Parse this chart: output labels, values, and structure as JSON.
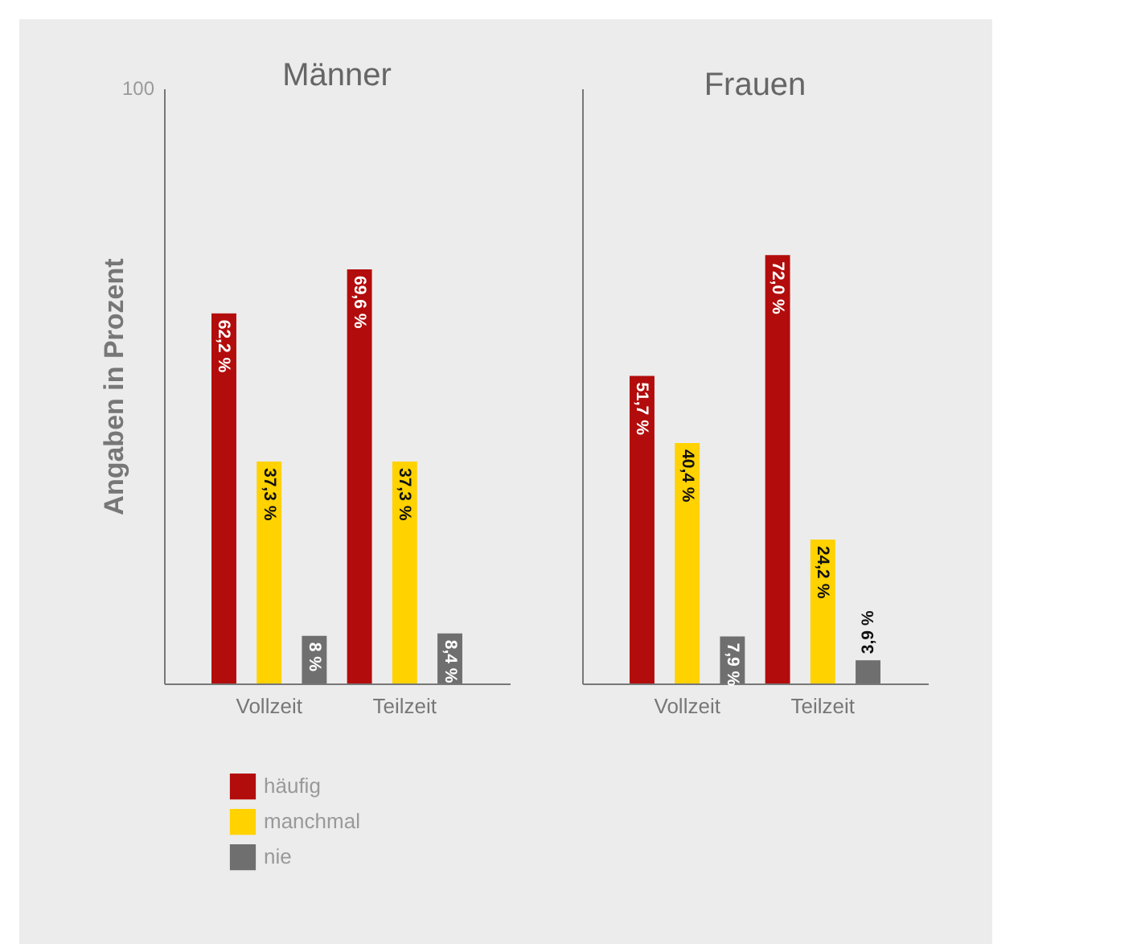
{
  "chart_data": [
    {
      "type": "bar",
      "title": "Männer",
      "ylabel": "Angaben in Prozent",
      "categories": [
        "Vollzeit",
        "Teilzeit"
      ],
      "ylim": [
        0,
        100
      ],
      "annotations": [
        "100"
      ],
      "legend": "bottom",
      "data_labels": true,
      "series": [
        {
          "name": "häufig",
          "color": "#b30c0c",
          "values": [
            62.2,
            69.6
          ],
          "value_labels": [
            "62,2 %",
            "69,6 %"
          ]
        },
        {
          "name": "manchmal",
          "color": "#ffd200",
          "values": [
            37.3,
            37.3
          ],
          "value_labels": [
            "37,3 %",
            "37,3 %"
          ]
        },
        {
          "name": "nie",
          "color": "#6f6f6f",
          "values": [
            8,
            8.4
          ],
          "value_labels": [
            "8 %",
            "8,4 %"
          ]
        }
      ]
    },
    {
      "type": "bar",
      "title": "Frauen",
      "categories": [
        "Vollzeit",
        "Teilzeit"
      ],
      "ylim": [
        0,
        100
      ],
      "tick_labels": "x",
      "data_labels": true,
      "series": [
        {
          "name": "häufig",
          "color": "#b30c0c",
          "values": [
            51.7,
            72.0
          ],
          "value_labels": [
            "51,7 %",
            "72,0 %"
          ]
        },
        {
          "name": "manchmal",
          "color": "#ffd200",
          "values": [
            40.4,
            24.2
          ],
          "value_labels": [
            "40,4 %",
            "24,2 %"
          ]
        },
        {
          "name": "nie",
          "color": "#6f6f6f",
          "values": [
            7.9,
            3.9
          ],
          "value_labels": [
            "7,9 %",
            "3,9 %"
          ]
        }
      ]
    }
  ]
}
